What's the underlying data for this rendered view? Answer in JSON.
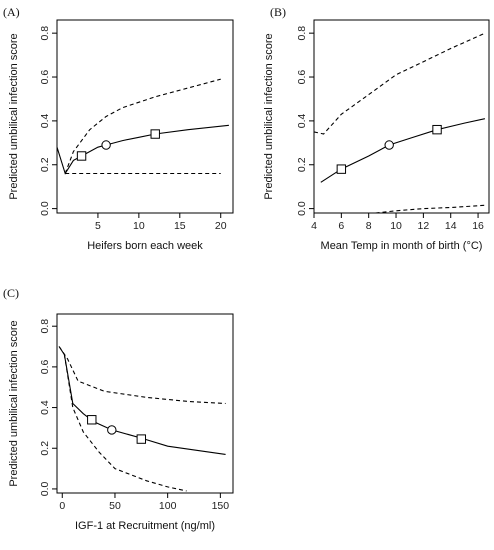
{
  "chart_data": [
    {
      "type": "line",
      "panel_label": "(A)",
      "xlabel": "Heifers born each week",
      "ylabel": "Predicted umbilical infection score",
      "xlim": [
        0,
        21.5
      ],
      "ylim": [
        -0.02,
        0.86
      ],
      "xticks": [
        5,
        10,
        15,
        20
      ],
      "yticks": [
        0.0,
        0.2,
        0.4,
        0.6,
        0.8
      ],
      "series": [
        {
          "style": "solid",
          "x": [
            0,
            1,
            2,
            3,
            5,
            6,
            8,
            10,
            12,
            16,
            21
          ],
          "y": [
            0.28,
            0.16,
            0.22,
            0.24,
            0.28,
            0.29,
            0.31,
            0.325,
            0.34,
            0.36,
            0.38
          ]
        },
        {
          "style": "dashed",
          "x": [
            1,
            2,
            4,
            6,
            8,
            12,
            16,
            20
          ],
          "y": [
            0.16,
            0.26,
            0.36,
            0.42,
            0.46,
            0.51,
            0.55,
            0.59
          ]
        },
        {
          "style": "dashed",
          "x": [
            1,
            20
          ],
          "y": [
            0.16,
            0.16
          ]
        }
      ],
      "markers": [
        {
          "shape": "square",
          "x": 3,
          "y": 0.24
        },
        {
          "shape": "circle",
          "x": 6,
          "y": 0.29
        },
        {
          "shape": "square",
          "x": 12,
          "y": 0.34
        }
      ]
    },
    {
      "type": "line",
      "panel_label": "(B)",
      "xlabel": "Mean Temp in month of birth (°C)",
      "ylabel": "Predicted umbilical infection score",
      "xlim": [
        4,
        16.8
      ],
      "ylim": [
        -0.02,
        0.86
      ],
      "xticks": [
        4,
        6,
        8,
        10,
        12,
        14,
        16
      ],
      "yticks": [
        0.0,
        0.2,
        0.4,
        0.6,
        0.8
      ],
      "series": [
        {
          "style": "solid",
          "x": [
            4.5,
            6,
            8,
            9.5,
            11,
            13,
            15,
            16.5
          ],
          "y": [
            0.12,
            0.18,
            0.24,
            0.29,
            0.32,
            0.36,
            0.39,
            0.41
          ]
        },
        {
          "style": "dashed",
          "x": [
            4,
            4.7,
            6,
            8,
            10,
            12,
            14,
            16.5
          ],
          "y": [
            0.35,
            0.34,
            0.43,
            0.52,
            0.61,
            0.67,
            0.73,
            0.8
          ]
        },
        {
          "style": "dashed",
          "x": [
            8.5,
            10,
            12,
            14,
            16.5
          ],
          "y": [
            -0.02,
            -0.01,
            0.0,
            0.005,
            0.015
          ]
        }
      ],
      "markers": [
        {
          "shape": "square",
          "x": 6,
          "y": 0.18
        },
        {
          "shape": "circle",
          "x": 9.5,
          "y": 0.29
        },
        {
          "shape": "square",
          "x": 13,
          "y": 0.36
        }
      ]
    },
    {
      "type": "line",
      "panel_label": "(C)",
      "xlabel": "IGF-1 at Recruitment (ng/ml)",
      "ylabel": "Predicted umbilical infection score",
      "xlim": [
        -5,
        162
      ],
      "ylim": [
        -0.02,
        0.86
      ],
      "xticks": [
        0,
        50,
        100,
        150
      ],
      "yticks": [
        0.0,
        0.2,
        0.4,
        0.6,
        0.8
      ],
      "series": [
        {
          "style": "solid",
          "x": [
            -3,
            2,
            10,
            20,
            30,
            47,
            75,
            100,
            155
          ],
          "y": [
            0.7,
            0.66,
            0.42,
            0.37,
            0.33,
            0.29,
            0.25,
            0.21,
            0.17
          ]
        },
        {
          "style": "dashed",
          "x": [
            -3,
            5,
            15,
            40,
            80,
            120,
            155
          ],
          "y": [
            0.7,
            0.64,
            0.53,
            0.48,
            0.45,
            0.43,
            0.42
          ]
        },
        {
          "style": "dashed",
          "x": [
            2,
            10,
            20,
            35,
            50,
            80,
            100,
            118
          ],
          "y": [
            0.66,
            0.4,
            0.28,
            0.18,
            0.1,
            0.04,
            0.01,
            -0.01
          ]
        }
      ],
      "markers": [
        {
          "shape": "square",
          "x": 28,
          "y": 0.34
        },
        {
          "shape": "circle",
          "x": 47,
          "y": 0.29
        },
        {
          "shape": "square",
          "x": 75,
          "y": 0.245
        }
      ]
    }
  ]
}
